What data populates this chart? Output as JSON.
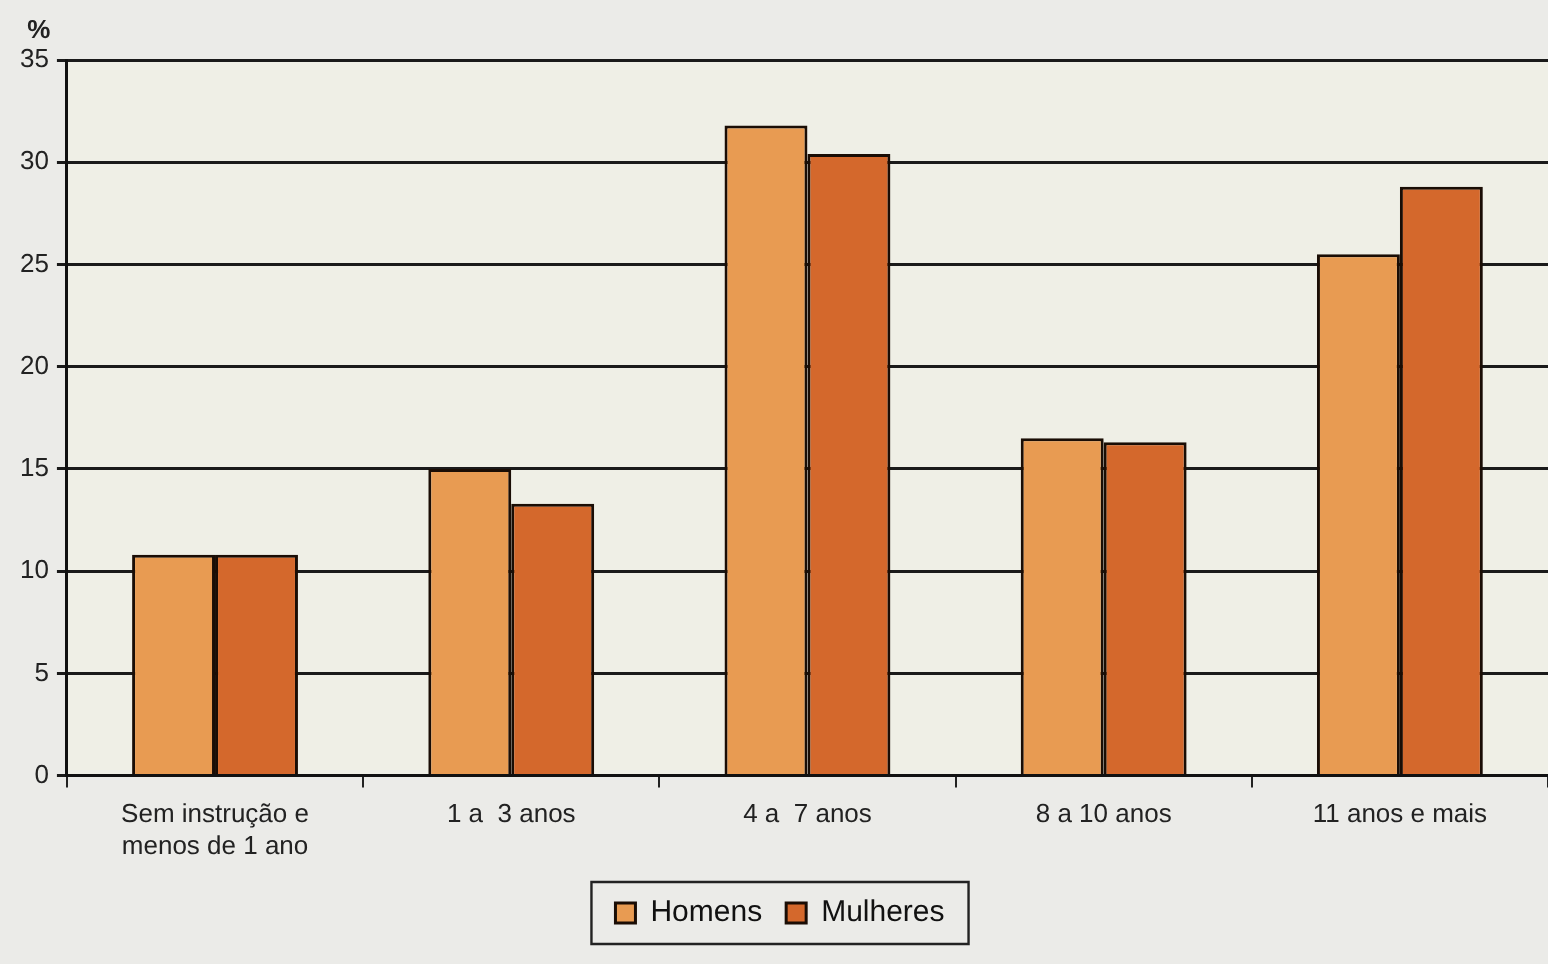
{
  "chart_data": {
    "type": "bar",
    "ylabel": "%",
    "categories": [
      "Sem instrução e menos de 1 ano",
      "1 a  3 anos",
      "4 a  7 anos",
      "8 a 10 anos",
      "11 anos e mais"
    ],
    "series": [
      {
        "name": "Homens",
        "color": "#e89b52",
        "values": [
          10.8,
          15.0,
          31.8,
          16.5,
          25.5
        ]
      },
      {
        "name": "Mulheres",
        "color": "#d4682c",
        "values": [
          10.8,
          13.3,
          30.4,
          16.3,
          28.8
        ]
      }
    ],
    "ylim": [
      0,
      35
    ],
    "yticks": [
      0,
      5,
      10,
      15,
      20,
      25,
      30,
      35
    ],
    "grid": "y",
    "legend": "bottom"
  }
}
